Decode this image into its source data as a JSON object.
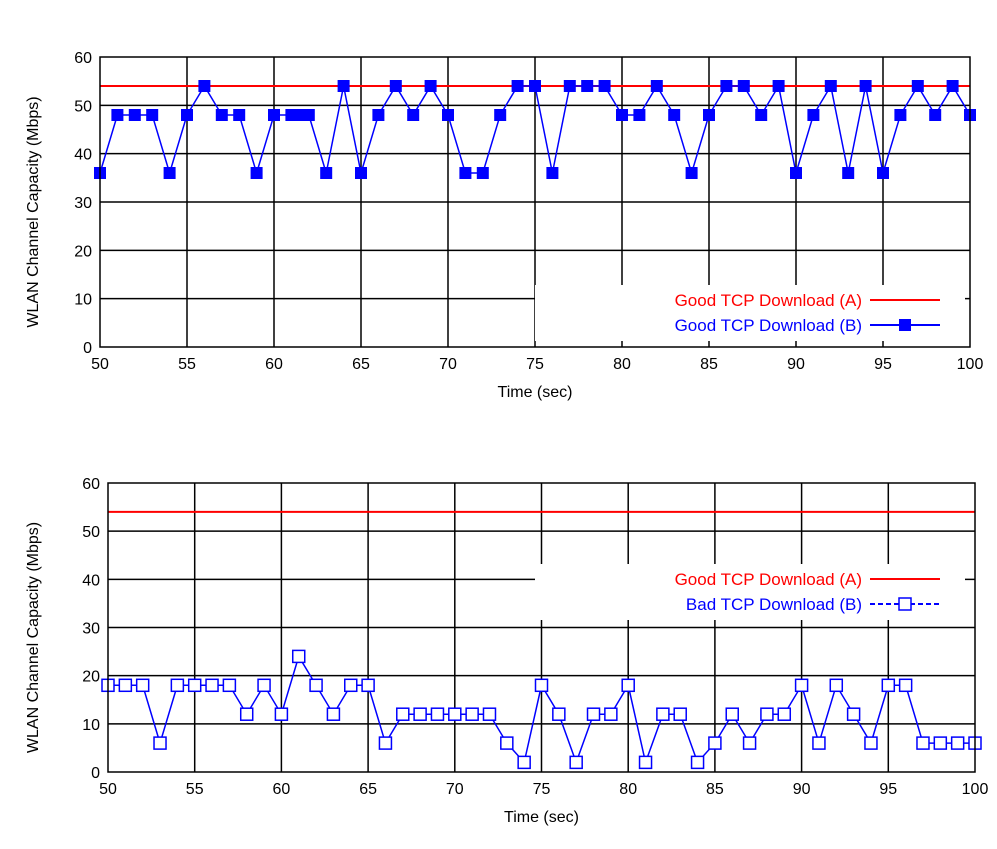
{
  "chart_data": [
    {
      "type": "line",
      "xlabel": "Time (sec)",
      "ylabel": "WLAN Channel   Capacity (Mbps)",
      "xlim": [
        50,
        100
      ],
      "ylim": [
        0,
        60
      ],
      "xticks": [
        50,
        55,
        60,
        65,
        70,
        75,
        80,
        85,
        90,
        95,
        100
      ],
      "yticks": [
        0,
        10,
        20,
        30,
        40,
        50,
        60
      ],
      "grid": true,
      "legend_position": "bottom-right",
      "series": [
        {
          "name": "Good TCP Download (A)",
          "color": "#ff0000",
          "marker": "none",
          "x": [
            50,
            100
          ],
          "y": [
            54,
            54
          ]
        },
        {
          "name": "Good TCP Download (B)",
          "color": "#0000ff",
          "marker": "filled-square",
          "x": [
            50,
            51,
            52,
            53,
            54,
            55,
            56,
            57,
            58,
            59,
            60,
            61,
            61.5,
            62,
            63,
            64,
            65,
            66,
            67,
            68,
            69,
            70,
            71,
            72,
            73,
            74,
            75,
            76,
            77,
            78,
            79,
            80,
            81,
            82,
            83,
            84,
            85,
            86,
            87,
            88,
            89,
            90,
            91,
            92,
            93,
            94,
            95,
            96,
            97,
            98,
            99,
            100
          ],
          "y": [
            36,
            48,
            48,
            48,
            36,
            48,
            54,
            48,
            48,
            36,
            48,
            48,
            48,
            48,
            36,
            54,
            36,
            48,
            54,
            48,
            54,
            48,
            36,
            36,
            48,
            54,
            54,
            36,
            54,
            54,
            54,
            48,
            48,
            54,
            48,
            36,
            48,
            54,
            54,
            48,
            54,
            36,
            48,
            54,
            36,
            54,
            36,
            48,
            54,
            48,
            54,
            48
          ]
        }
      ]
    },
    {
      "type": "line",
      "xlabel": "Time (sec)",
      "ylabel": "WLAN Channel Capacity (Mbps)",
      "xlim": [
        50,
        100
      ],
      "ylim": [
        0,
        60
      ],
      "xticks": [
        50,
        55,
        60,
        65,
        70,
        75,
        80,
        85,
        90,
        95,
        100
      ],
      "yticks": [
        0,
        10,
        20,
        30,
        40,
        50,
        60
      ],
      "grid": true,
      "legend_position": "middle-right",
      "series": [
        {
          "name": "Good TCP Download (A)",
          "color": "#ff0000",
          "marker": "none",
          "x": [
            50,
            100
          ],
          "y": [
            54,
            54
          ]
        },
        {
          "name": "Bad TCP Download (B)",
          "color": "#0000ff",
          "marker": "open-square",
          "x": [
            50,
            51,
            52,
            53,
            54,
            55,
            56,
            57,
            58,
            59,
            60,
            61,
            62,
            63,
            64,
            65,
            66,
            67,
            68,
            69,
            70,
            71,
            72,
            73,
            74,
            75,
            76,
            77,
            78,
            79,
            80,
            81,
            82,
            83,
            84,
            85,
            86,
            87,
            88,
            89,
            90,
            91,
            92,
            93,
            94,
            95,
            96,
            97,
            98,
            99,
            100
          ],
          "y": [
            18,
            18,
            18,
            6,
            18,
            18,
            18,
            18,
            12,
            18,
            12,
            24,
            18,
            12,
            18,
            18,
            6,
            12,
            12,
            12,
            12,
            12,
            12,
            6,
            2,
            18,
            12,
            2,
            12,
            12,
            18,
            2,
            12,
            12,
            2,
            6,
            12,
            6,
            12,
            12,
            18,
            6,
            18,
            12,
            6,
            18,
            18,
            6,
            6,
            6,
            6
          ]
        }
      ]
    }
  ]
}
